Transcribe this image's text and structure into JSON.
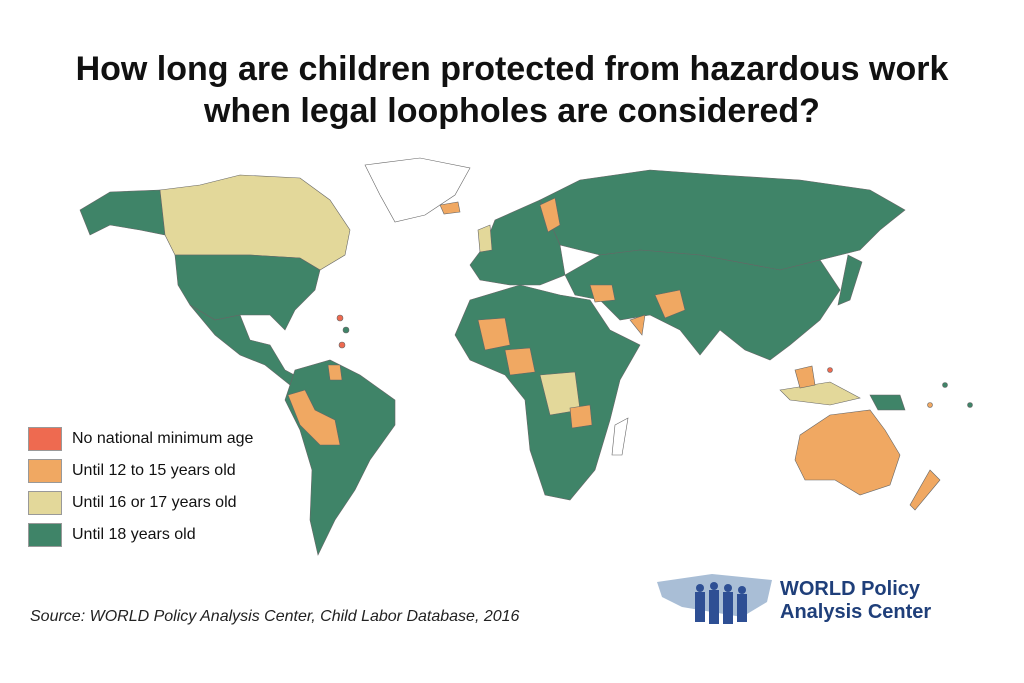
{
  "title": {
    "line1": "How long are children protected from hazardous work",
    "line2": "when legal loopholes are considered?"
  },
  "legend": {
    "items": [
      {
        "label": "No national minimum age",
        "color": "#ee6a50"
      },
      {
        "label": "Until 12 to 15 years old",
        "color": "#f0a862"
      },
      {
        "label": "Until 16 or 17 years old",
        "color": "#e3d89a"
      },
      {
        "label": "Until 18 years old",
        "color": "#3f8468"
      }
    ]
  },
  "source": "Source: WORLD Policy Analysis Center, Child Labor Database, 2016",
  "logo": {
    "line1": "WORLD Policy",
    "line2": "Analysis Center"
  }
}
